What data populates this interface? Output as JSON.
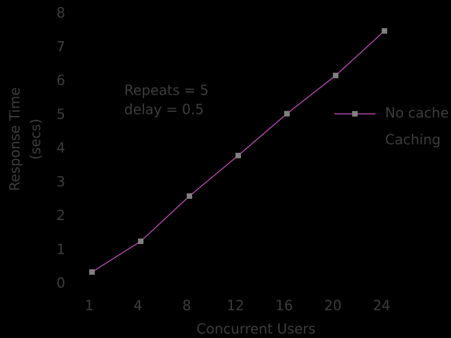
{
  "chart_data": {
    "type": "line",
    "x_label": "Concurrent Users",
    "y_label": [
      "Response Time",
      "(secs)"
    ],
    "annotations": [
      "Repeats = 5",
      "delay = 0.5"
    ],
    "categories": [
      "1",
      "4",
      "8",
      "12",
      "16",
      "20",
      "24"
    ],
    "series": [
      {
        "name": "No cache",
        "color": "#b04aa8",
        "marker_color": "#808080",
        "values": [
          0.35,
          1.26,
          2.6,
          3.8,
          5.04,
          6.17,
          7.49
        ]
      },
      {
        "name": "Caching",
        "color": "#000000",
        "values": [
          null,
          null,
          null,
          null,
          null,
          null,
          null
        ]
      }
    ],
    "ylim": [
      0,
      8
    ],
    "yticks": [
      0,
      1,
      2,
      3,
      4,
      5,
      6,
      7,
      8
    ],
    "grid": false
  }
}
